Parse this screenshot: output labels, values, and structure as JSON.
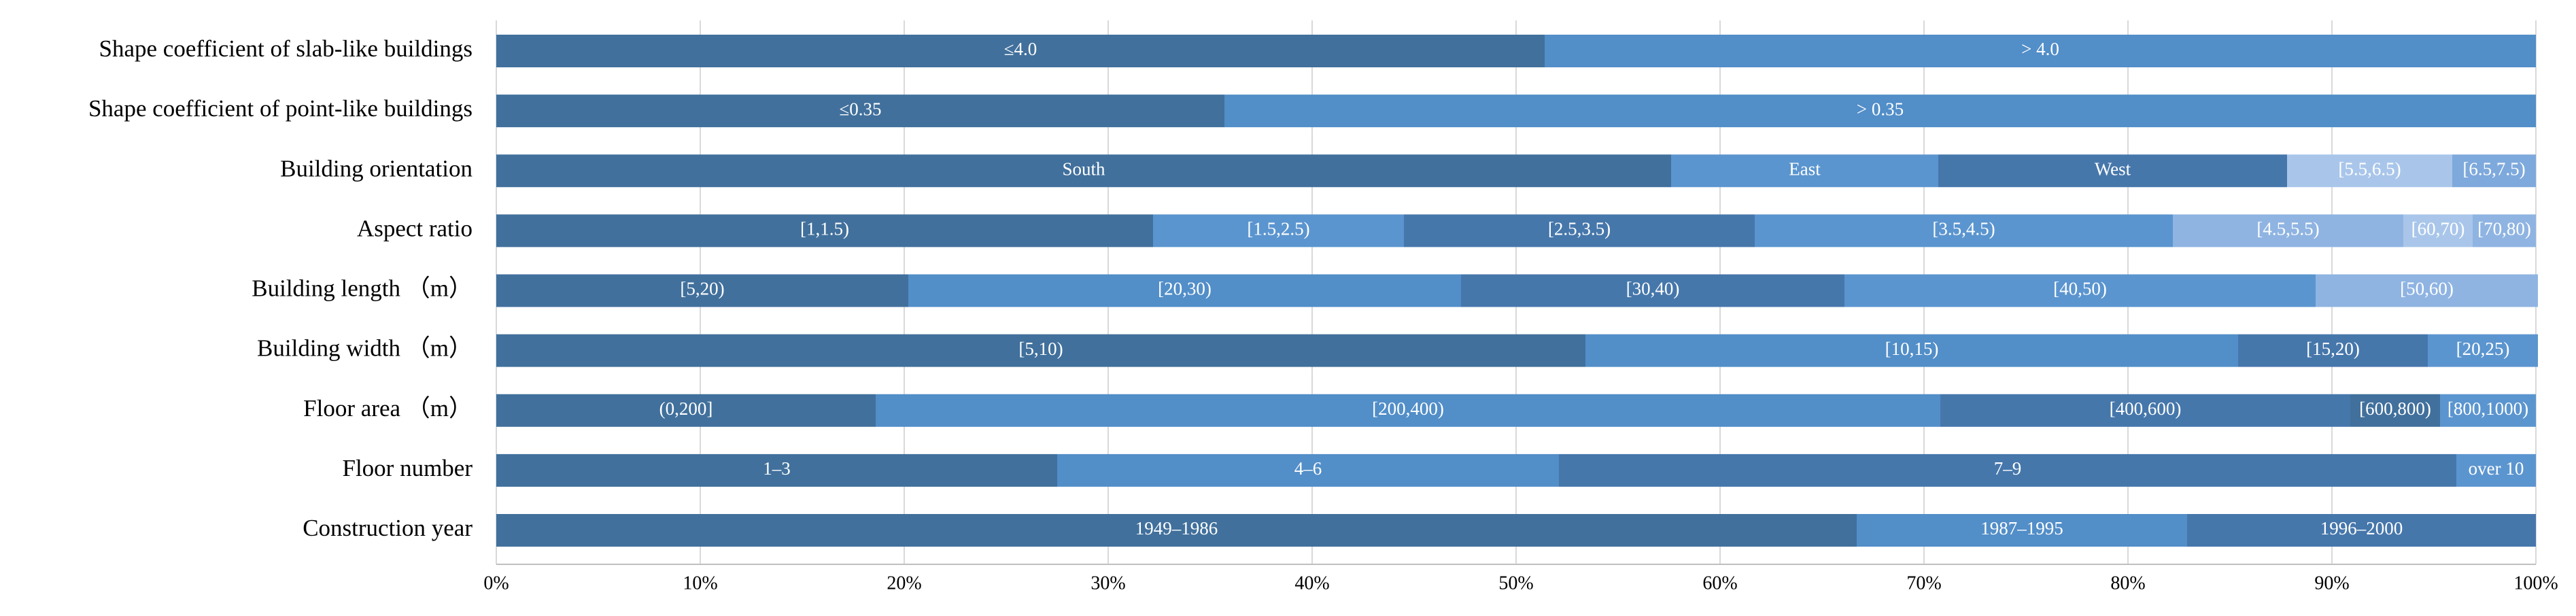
{
  "chart_data": {
    "type": "stacked_barh",
    "categories": [
      "Shape coefficient of slab-like buildings",
      "Shape coefficient of point-like buildings",
      "Building orientation",
      "Aspect ratio",
      "Building length （m）",
      "Building width （m）",
      "Floor area （m）",
      "Floor number",
      "Construction year"
    ],
    "segments": [
      [
        {
          "label": "≤4.0",
          "value": 51.4,
          "color": "#41709c"
        },
        {
          "label": "> 4.0",
          "value": 48.6,
          "color": "#528ec8"
        }
      ],
      [
        {
          "label": "≤0.35",
          "value": 35.7,
          "color": "#41709c"
        },
        {
          "label": "> 0.35",
          "value": 64.3,
          "color": "#528ec8"
        }
      ],
      [
        {
          "label": "South",
          "value": 57.6,
          "color": "#41709c"
        },
        {
          "label": "East",
          "value": 13.1,
          "color": "#5b95cf"
        },
        {
          "label": "West",
          "value": 17.1,
          "color": "#4677ab"
        },
        {
          "label": "[5.5,6.5)",
          "value": 8.1,
          "color": "#a9c6ea"
        },
        {
          "label": "[6.5,7.5)",
          "value": 4.1,
          "color": "#7ea9dc"
        }
      ],
      [
        {
          "label": "[1,1.5)",
          "value": 32.2,
          "color": "#41709c"
        },
        {
          "label": "[1.5,2.5)",
          "value": 12.3,
          "color": "#5b95cf"
        },
        {
          "label": "[2.5,3.5)",
          "value": 17.2,
          "color": "#4677ab"
        },
        {
          "label": "[3.5,4.5)",
          "value": 20.5,
          "color": "#5b95cf"
        },
        {
          "label": "[4.5,5.5)",
          "value": 11.3,
          "color": "#8fb4e2"
        },
        {
          "label": "[60,70)",
          "value": 3.4,
          "color": "#a9c6ea"
        },
        {
          "label": "[70,80)",
          "value": 3.1,
          "color": "#8fb4e2"
        }
      ],
      [
        {
          "label": "[5,20)",
          "value": 20.2,
          "color": "#41709c"
        },
        {
          "label": "[20,30)",
          "value": 27.1,
          "color": "#528ec8"
        },
        {
          "label": "[30,40)",
          "value": 18.8,
          "color": "#4677ab"
        },
        {
          "label": "[40,50)",
          "value": 23.1,
          "color": "#5b95cf"
        },
        {
          "label": "[50,60)",
          "value": 10.9,
          "color": "#8fb4e2"
        }
      ],
      [
        {
          "label": "[5,10)",
          "value": 53.4,
          "color": "#41709c"
        },
        {
          "label": "[10,15)",
          "value": 32.0,
          "color": "#528ec8"
        },
        {
          "label": "[15,20)",
          "value": 9.3,
          "color": "#4677ab"
        },
        {
          "label": "[20,25)",
          "value": 5.4,
          "color": "#5b95cf"
        }
      ],
      [
        {
          "label": "(0,200]",
          "value": 18.6,
          "color": "#41709c"
        },
        {
          "label": "[200,400)",
          "value": 52.2,
          "color": "#528ec8"
        },
        {
          "label": "[400,600)",
          "value": 20.1,
          "color": "#4677ab"
        },
        {
          "label": "[600,800)",
          "value": 4.4,
          "color": "#41709c"
        },
        {
          "label": "[800,1000)",
          "value": 4.7,
          "color": "#5b95cf"
        }
      ],
      [
        {
          "label": "1–3",
          "value": 27.5,
          "color": "#41709c"
        },
        {
          "label": "4–6",
          "value": 24.6,
          "color": "#528ec8"
        },
        {
          "label": "7–9",
          "value": 44.0,
          "color": "#4677ab"
        },
        {
          "label": "over 10",
          "value": 3.9,
          "color": "#5b95cf"
        }
      ],
      [
        {
          "label": "1949–1986",
          "value": 66.7,
          "color": "#41709c"
        },
        {
          "label": "1987–1995",
          "value": 16.2,
          "color": "#528ec8"
        },
        {
          "label": "1996–2000",
          "value": 17.1,
          "color": "#4677ab"
        }
      ]
    ],
    "xlim": [
      0,
      100
    ],
    "xticks": [
      {
        "value": 0,
        "label": "0%"
      },
      {
        "value": 10,
        "label": "10%"
      },
      {
        "value": 20,
        "label": "20%"
      },
      {
        "value": 30,
        "label": "30%"
      },
      {
        "value": 40,
        "label": "40%"
      },
      {
        "value": 50,
        "label": "50%"
      },
      {
        "value": 60,
        "label": "60%"
      },
      {
        "value": 70,
        "label": "70%"
      },
      {
        "value": 80,
        "label": "80%"
      },
      {
        "value": 90,
        "label": "90%"
      },
      {
        "value": 100,
        "label": "100%"
      }
    ],
    "grid": true
  }
}
